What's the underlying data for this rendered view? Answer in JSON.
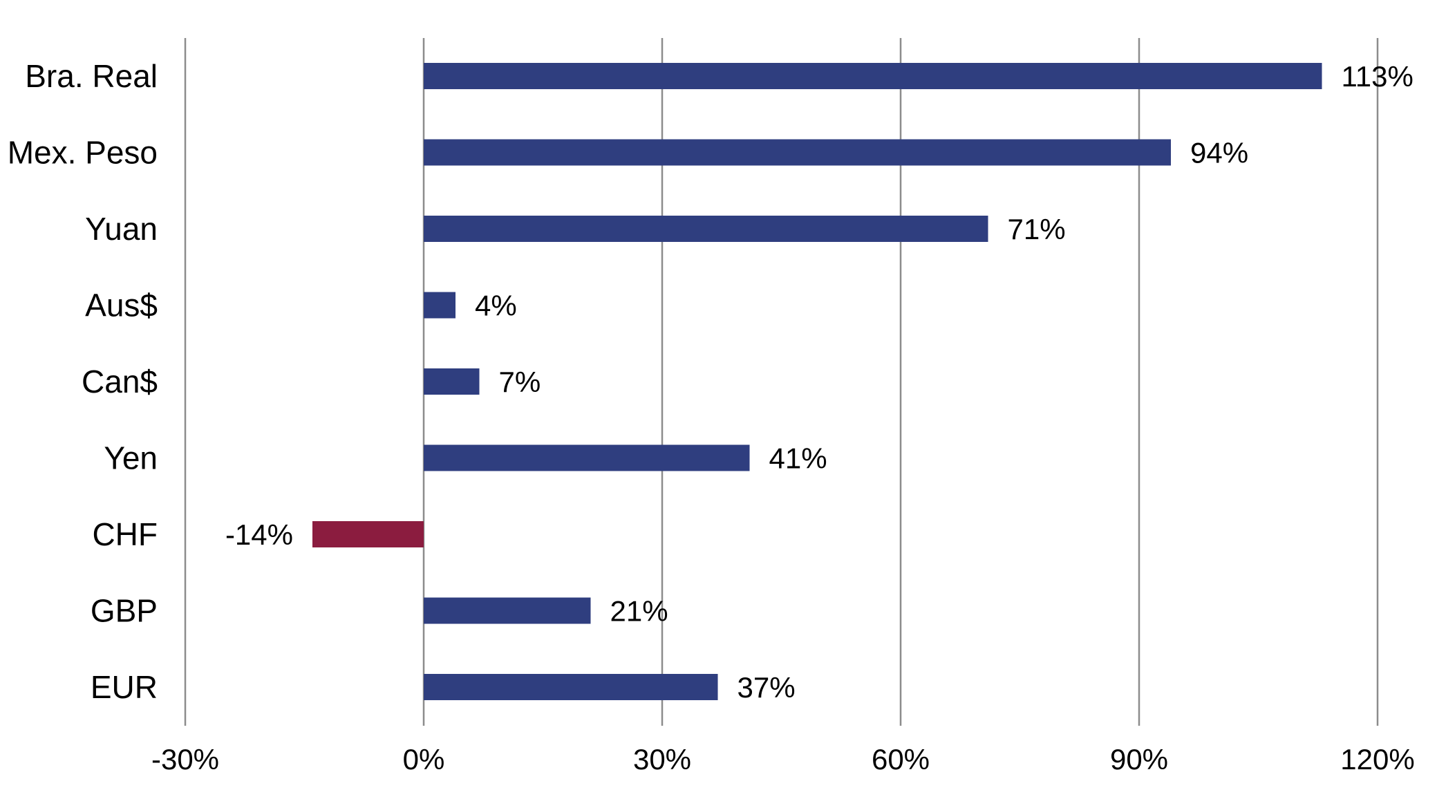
{
  "chart_data": {
    "type": "bar",
    "orientation": "horizontal",
    "categories": [
      "Bra. Real",
      "Mex. Peso",
      "Yuan",
      "Aus$",
      "Can$",
      "Yen",
      "CHF",
      "GBP",
      "EUR"
    ],
    "values": [
      113,
      94,
      71,
      4,
      7,
      41,
      -14,
      21,
      37
    ],
    "value_labels": [
      "113%",
      "94%",
      "71%",
      "4%",
      "7%",
      "41%",
      "-14%",
      "21%",
      "37%"
    ],
    "title": "",
    "xlabel": "",
    "ylabel": "",
    "xlim": [
      -30,
      120
    ],
    "x_ticks": [
      -30,
      0,
      30,
      60,
      90,
      120
    ],
    "x_tick_labels": [
      "-30%",
      "0%",
      "30%",
      "60%",
      "90%",
      "120%"
    ],
    "grid": true,
    "legend": "none",
    "colors": {
      "positive": "#2f3e7f",
      "negative": "#8b1c3f"
    }
  }
}
